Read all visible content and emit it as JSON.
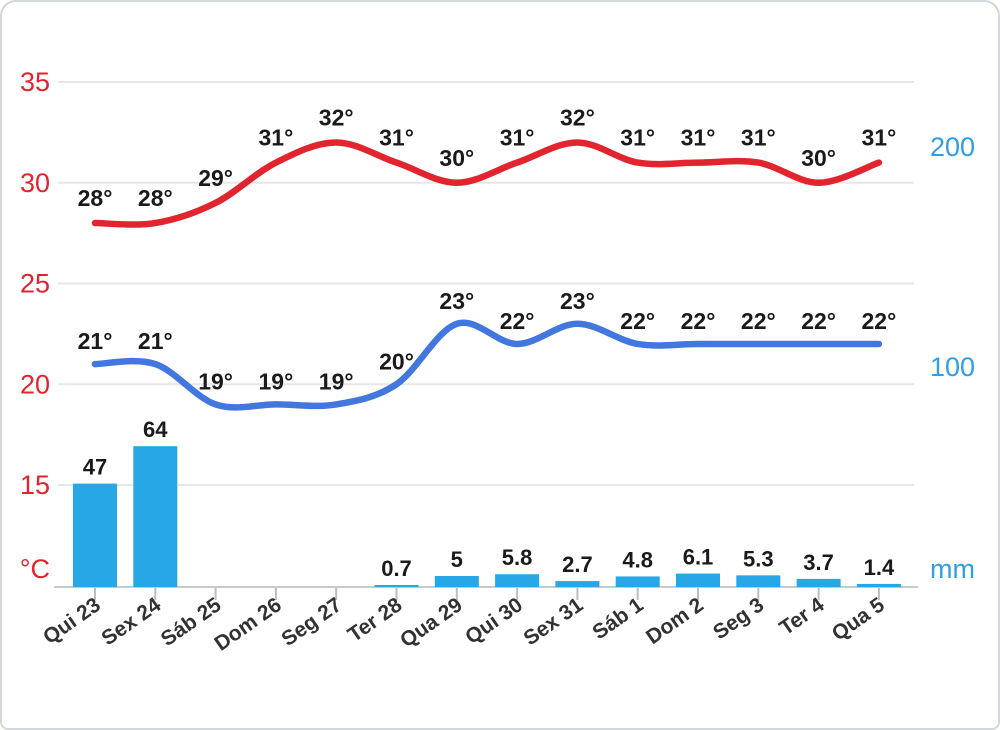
{
  "chart_data": {
    "type": "line+bar",
    "title": "",
    "categories": [
      "Qui 23",
      "Sex 24",
      "Sáb 25",
      "Dom 26",
      "Seg 27",
      "Ter 28",
      "Qua 29",
      "Qui 30",
      "Sex 31",
      "Sáb 1",
      "Dom 2",
      "Seg 3",
      "Ter 4",
      "Qua 5"
    ],
    "series": [
      {
        "name": "max-temp",
        "type": "line",
        "unit": "°",
        "values": [
          28,
          28,
          29,
          31,
          32,
          31,
          30,
          31,
          32,
          31,
          31,
          31,
          30,
          31
        ]
      },
      {
        "name": "min-temp",
        "type": "line",
        "unit": "°",
        "values": [
          21,
          21,
          19,
          19,
          19,
          20,
          23,
          22,
          23,
          22,
          22,
          22,
          22,
          22
        ]
      },
      {
        "name": "precipitation",
        "type": "bar",
        "unit": "mm",
        "values": [
          47,
          64,
          null,
          null,
          null,
          0.7,
          5,
          5.8,
          2.7,
          4.8,
          6.1,
          5.3,
          3.7,
          1.4
        ],
        "labels": [
          "47",
          "64",
          "",
          "",
          "",
          "0.7",
          "5",
          "5.8",
          "2.7",
          "4.8",
          "6.1",
          "5.3",
          "3.7",
          "1.4"
        ]
      }
    ],
    "axes": {
      "left": {
        "tick_labels": [
          "35",
          "30",
          "25",
          "20",
          "15"
        ],
        "tick_values": [
          35,
          30,
          25,
          20,
          15
        ],
        "unit": "°C",
        "range": [
          10,
          37
        ]
      },
      "right": {
        "tick_labels": [
          "200",
          "100"
        ],
        "tick_values": [
          200,
          100
        ],
        "unit": "mm",
        "range": [
          0,
          200
        ]
      }
    },
    "legend": "none",
    "grid": "horizontal",
    "colors": {
      "max_line": "#e2242e",
      "min_line": "#4377e0",
      "bar": "#28a7e6",
      "left_axis": "#e2242e",
      "right_axis": "#2d9fe2",
      "data_label": "#1a1a1a",
      "x_label": "#323232",
      "grid": "#e7e7e7",
      "axis_line": "#c5cacd",
      "tick": "#b9bec4"
    }
  }
}
